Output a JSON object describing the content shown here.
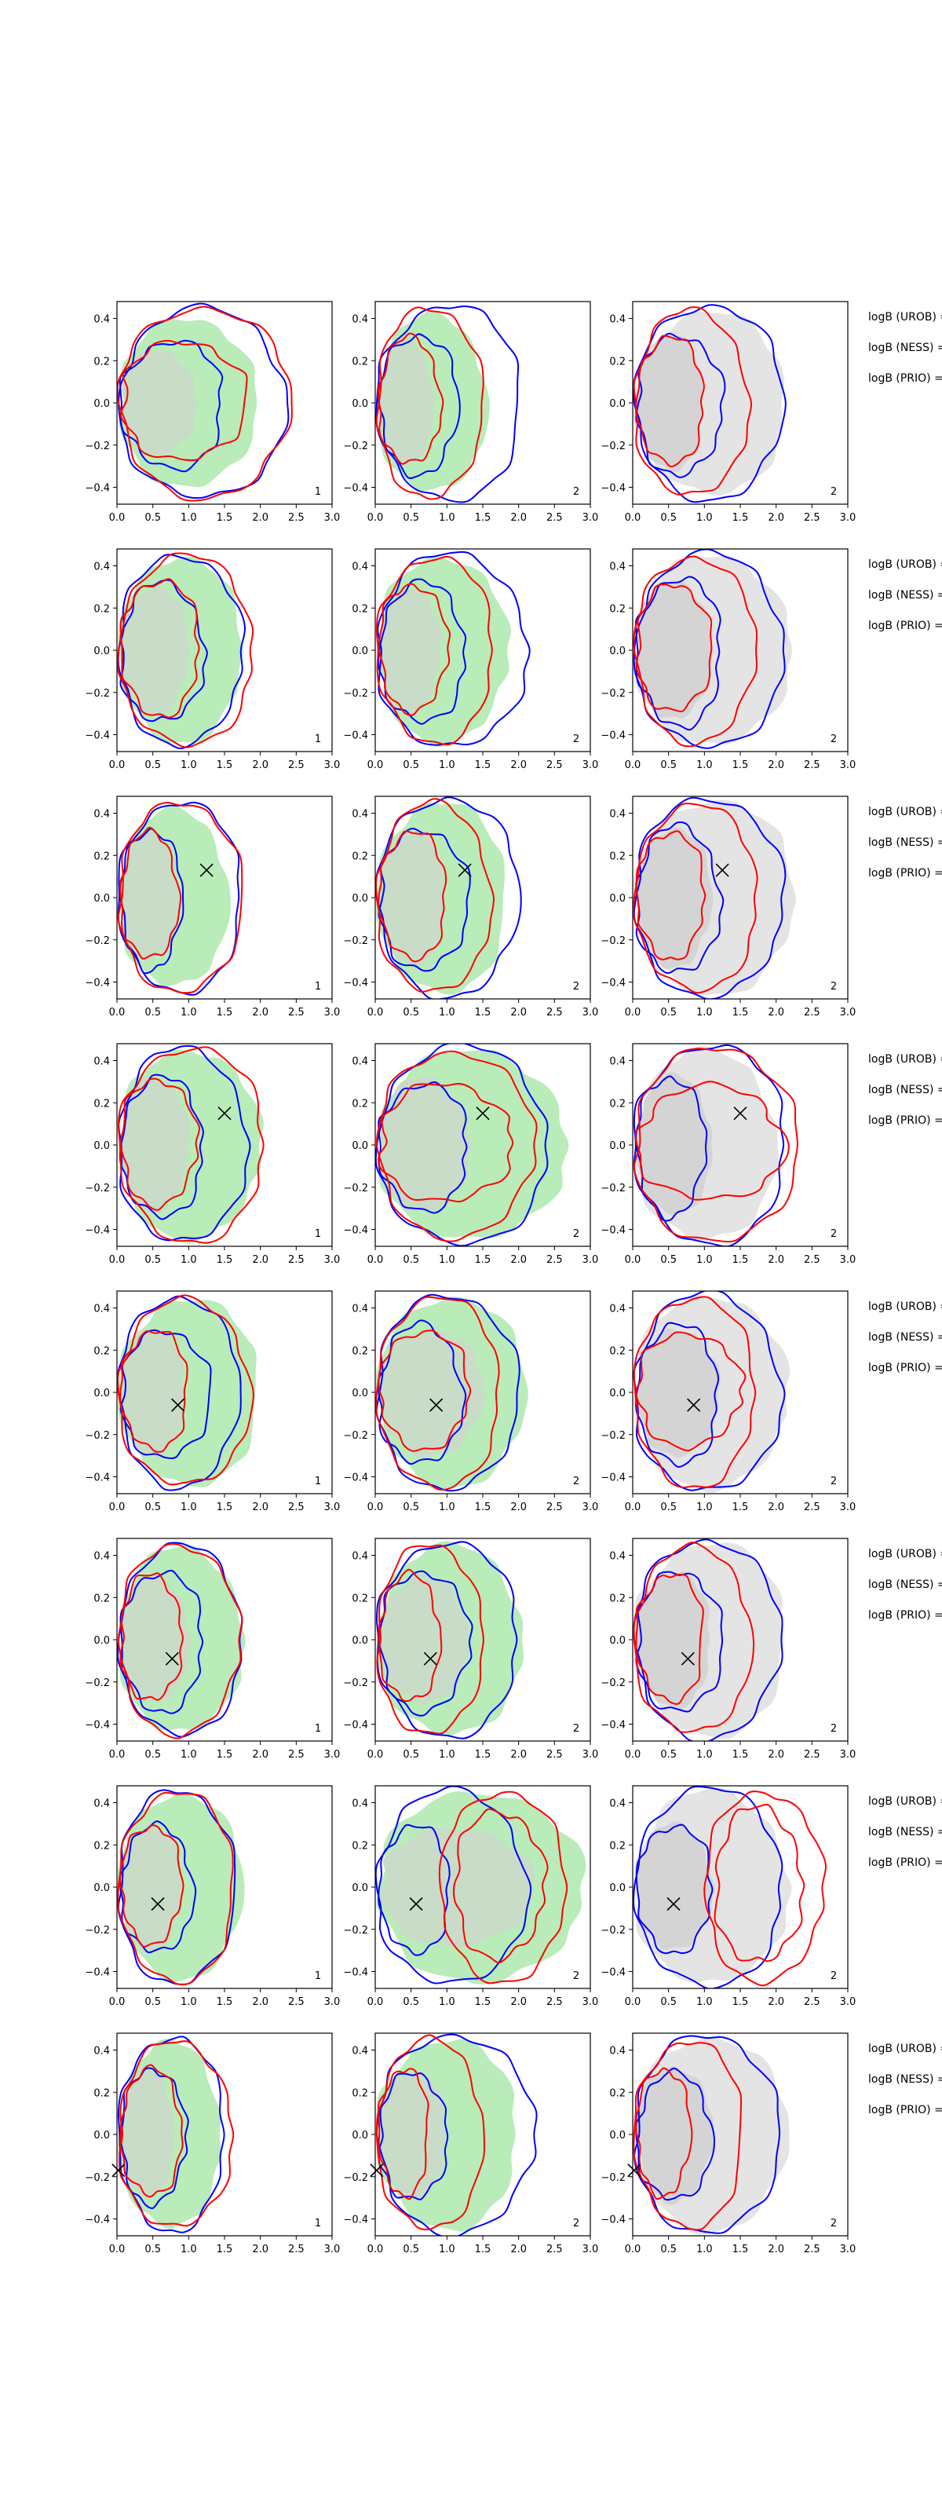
{
  "figure": {
    "columns": 3,
    "rows": 8,
    "x_ticks": [
      "0.0",
      "0.5",
      "1.0",
      "1.5",
      "2.0",
      "2.5",
      "3.0"
    ],
    "y_ticks": [
      "0.4",
      "0.2",
      "0.0",
      "−0.2",
      "−0.4"
    ],
    "xlim": [
      0,
      3
    ],
    "ylim": [
      -0.48,
      0.48
    ],
    "side_labels": [
      "logB (UROB) =",
      "logB (NESS) =",
      "logB (PRIO) ="
    ],
    "colors": {
      "blue": "#0000ff",
      "red": "#ff0000",
      "green": "#b9ecb9",
      "green_inner": "#c8dcc8",
      "grey": "#e4e4e4",
      "grey_inner": "#d4d4d4"
    }
  },
  "chart_data": [
    {
      "row": 1,
      "type": "contour",
      "panels": [
        {
          "index": "1",
          "fill": "green"
        },
        {
          "index": "2",
          "fill": "green"
        },
        {
          "index": "2",
          "fill": "grey"
        }
      ],
      "marker": null
    },
    {
      "row": 2,
      "type": "contour",
      "panels": [
        {
          "index": "1",
          "fill": "green"
        },
        {
          "index": "2",
          "fill": "green"
        },
        {
          "index": "2",
          "fill": "grey"
        }
      ],
      "marker": null
    },
    {
      "row": 3,
      "type": "contour",
      "panels": [
        {
          "index": "1",
          "fill": "green"
        },
        {
          "index": "2",
          "fill": "green"
        },
        {
          "index": "2",
          "fill": "grey"
        }
      ],
      "marker": {
        "x": 1.25,
        "y": 0.13
      }
    },
    {
      "row": 4,
      "type": "contour",
      "panels": [
        {
          "index": "1",
          "fill": "green"
        },
        {
          "index": "2",
          "fill": "green"
        },
        {
          "index": "2",
          "fill": "grey"
        }
      ],
      "marker": {
        "x": 1.5,
        "y": 0.15
      }
    },
    {
      "row": 5,
      "type": "contour",
      "panels": [
        {
          "index": "1",
          "fill": "green"
        },
        {
          "index": "2",
          "fill": "green"
        },
        {
          "index": "2",
          "fill": "grey"
        }
      ],
      "marker": {
        "x": 0.85,
        "y": -0.06
      }
    },
    {
      "row": 6,
      "type": "contour",
      "panels": [
        {
          "index": "1",
          "fill": "green"
        },
        {
          "index": "2",
          "fill": "green"
        },
        {
          "index": "2",
          "fill": "grey"
        }
      ],
      "marker": {
        "x": 0.77,
        "y": -0.09
      }
    },
    {
      "row": 7,
      "type": "contour",
      "panels": [
        {
          "index": "1",
          "fill": "green"
        },
        {
          "index": "2",
          "fill": "green"
        },
        {
          "index": "2",
          "fill": "grey"
        }
      ],
      "marker": {
        "x": 0.57,
        "y": -0.08
      }
    },
    {
      "row": 8,
      "type": "contour",
      "panels": [
        {
          "index": "1",
          "fill": "green"
        },
        {
          "index": "2",
          "fill": "green"
        },
        {
          "index": "2",
          "fill": "grey"
        }
      ],
      "marker": {
        "x": 0.02,
        "y": -0.17
      }
    }
  ]
}
